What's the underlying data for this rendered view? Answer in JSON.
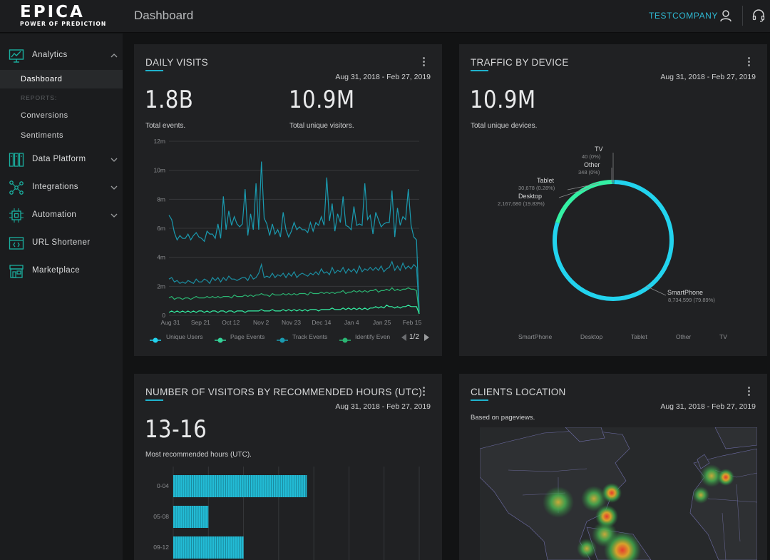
{
  "app": {
    "logo_word": "EPICA",
    "logo_tagline": "POWER OF PREDICTION",
    "page_title": "Dashboard",
    "company": "TESTCOMPANY"
  },
  "sidebar": {
    "analytics": {
      "label": "Analytics",
      "icon": "analytics-icon"
    },
    "sub_items": [
      "Dashboard",
      "Conversions",
      "Sentiments"
    ],
    "reports_label": "REPORTS:",
    "items": [
      {
        "label": "Data Platform",
        "icon": "data-platform-icon"
      },
      {
        "label": "Integrations",
        "icon": "integrations-icon"
      },
      {
        "label": "Automation",
        "icon": "automation-icon"
      },
      {
        "label": "URL Shortener",
        "icon": "url-shortener-icon"
      },
      {
        "label": "Marketplace",
        "icon": "marketplace-icon"
      }
    ]
  },
  "colors": {
    "accent": "#1fb2cc",
    "cyan": "#22d3ee",
    "green": "#34d399",
    "teal": "#1a9bb0",
    "emerald": "#2bb673",
    "dark_teal": "#0e7b8c"
  },
  "daily_visits": {
    "title": "DAILY VISITS",
    "date_range": "Aug 31, 2018 - Feb 27, 2019",
    "total_events": "1.8B",
    "total_events_label": "Total events.",
    "unique_visitors": "10.9M",
    "unique_visitors_label": "Total unique visitors.",
    "legend": [
      "Unique Users",
      "Page Events",
      "Track Events",
      "Identify Even"
    ],
    "pager": "1/2"
  },
  "traffic_by_device": {
    "title": "TRAFFIC BY DEVICE",
    "date_range": "Aug 31, 2018 - Feb 27, 2019",
    "total": "10.9M",
    "total_label": "Total unique devices.",
    "labels": {
      "tv": "TV",
      "tv_sub": "40 (0%)",
      "other": "Other",
      "other_sub": "348 (0%)",
      "tablet": "Tablet",
      "tablet_sub": "30,678 (0.28%)",
      "desktop": "Desktop",
      "desktop_sub": "2,167,680 (19.83%)",
      "smartphone": "SmartPhone",
      "smartphone_sub": "8,734,599 (79.89%)"
    },
    "legend": [
      "SmartPhone",
      "Desktop",
      "Tablet",
      "Other",
      "TV"
    ]
  },
  "recommended_hours": {
    "title": "NUMBER OF VISITORS BY RECOMMENDED HOURS (UTC)",
    "date_range": "Aug 31, 2018 - Feb 27, 2019",
    "value": "13-16",
    "value_label": "Most recommended hours (UTC)."
  },
  "clients_location": {
    "title": "CLIENTS LOCATION",
    "date_range": "Aug 31, 2018 - Feb 27, 2019",
    "subtitle": "Based on pageviews."
  },
  "chart_data": [
    {
      "type": "line",
      "title": "DAILY VISITS",
      "x_ticks": [
        "Aug 31",
        "Sep 21",
        "Oct 12",
        "Nov 2",
        "Nov 23",
        "Dec 14",
        "Jan 4",
        "Jan 25",
        "Feb 15"
      ],
      "y_ticks": [
        "0",
        "2m",
        "4m",
        "6m",
        "8m",
        "10m",
        "12m"
      ],
      "ylim": [
        0,
        12
      ],
      "series": [
        {
          "name": "Track Events",
          "values": [
            6.9,
            6.6,
            5.7,
            5.2,
            5.5,
            5.3,
            5.3,
            5.6,
            5.2,
            5.5,
            5.7,
            5.4,
            5.3,
            5.1,
            5.8,
            5.6,
            5.6,
            5.3,
            6.3,
            5.3,
            8.2,
            5.9,
            7.2,
            6.2,
            6.8,
            6.3,
            6.1,
            6.3,
            8.7,
            5.5,
            7.0,
            5.9,
            9.1,
            5.9,
            10.6,
            6.7,
            6.3,
            5.5,
            6.3,
            5.6,
            5.9,
            5.4,
            7.1,
            5.9,
            5.4,
            5.8,
            6.4,
            5.9,
            6.1,
            5.9,
            5.9,
            5.7,
            6.4,
            5.8,
            6.4,
            6.2,
            6.8,
            6.2,
            9.5,
            6.5,
            7.7,
            5.8,
            7.0,
            6.4,
            8.2,
            6.2,
            6.1,
            5.9,
            7.5,
            6.2,
            6.3,
            6.2,
            9.1,
            6.6,
            6.9,
            5.6,
            7.1,
            6.6,
            6.1,
            6.3,
            6.4,
            6.4,
            8.6,
            5.4,
            7.4,
            6.2,
            6.8,
            6.6,
            8.7,
            6.2,
            5.4,
            5.2,
            0.3
          ]
        },
        {
          "name": "Unique Users",
          "values": [
            2.5,
            2.6,
            2.3,
            2.4,
            2.2,
            2.3,
            2.2,
            2.4,
            2.3,
            2.2,
            2.5,
            2.3,
            2.3,
            2.5,
            2.4,
            2.2,
            2.6,
            2.4,
            2.6,
            2.3,
            2.6,
            2.4,
            2.7,
            2.5,
            2.5,
            2.4,
            2.5,
            2.6,
            2.6,
            2.4,
            2.8,
            2.5,
            2.6,
            2.9,
            3.5,
            2.6,
            2.7,
            2.6,
            2.9,
            2.6,
            2.8,
            2.7,
            2.9,
            2.6,
            2.9,
            2.7,
            3.0,
            2.6,
            2.8,
            2.9,
            2.8,
            2.7,
            2.9,
            2.8,
            3.0,
            2.8,
            3.2,
            2.9,
            3.0,
            2.8,
            3.3,
            2.9,
            3.1,
            3.0,
            3.3,
            2.9,
            3.2,
            3.0,
            3.2,
            2.9,
            3.4,
            3.0,
            3.2,
            3.1,
            3.3,
            3.1,
            3.3,
            3.1,
            3.4,
            3.0,
            3.2,
            3.3,
            3.7,
            3.1,
            3.4,
            3.1,
            3.6,
            3.2,
            3.4,
            3.2,
            3.5,
            3.3,
            0.2
          ]
        },
        {
          "name": "Identify Events",
          "values": [
            1.2,
            1.3,
            1.1,
            1.2,
            1.2,
            1.1,
            1.2,
            1.2,
            1.1,
            1.2,
            1.3,
            1.2,
            1.2,
            1.2,
            1.3,
            1.2,
            1.3,
            1.2,
            1.3,
            1.2,
            1.3,
            1.3,
            1.3,
            1.2,
            1.4,
            1.3,
            1.3,
            1.3,
            1.4,
            1.3,
            1.4,
            1.3,
            1.4,
            1.4,
            1.5,
            1.4,
            1.4,
            1.3,
            1.5,
            1.4,
            1.4,
            1.4,
            1.5,
            1.4,
            1.5,
            1.4,
            1.5,
            1.4,
            1.5,
            1.5,
            1.5,
            1.4,
            1.6,
            1.5,
            1.5,
            1.5,
            1.6,
            1.5,
            1.6,
            1.5,
            1.6,
            1.5,
            1.6,
            1.6,
            1.7,
            1.5,
            1.6,
            1.6,
            1.7,
            1.6,
            1.7,
            1.6,
            1.7,
            1.6,
            1.7,
            1.7,
            1.8,
            1.6,
            1.7,
            1.7,
            1.8,
            1.7,
            1.9,
            1.7,
            1.8,
            1.7,
            1.8,
            1.8,
            1.9,
            1.8,
            1.8,
            1.7,
            0.1
          ]
        },
        {
          "name": "Page Events",
          "values": [
            0.2,
            0.3,
            0.2,
            0.3,
            0.2,
            0.3,
            0.2,
            0.3,
            0.2,
            0.3,
            0.2,
            0.3,
            0.3,
            0.2,
            0.3,
            0.2,
            0.3,
            0.3,
            0.2,
            0.3,
            0.3,
            0.2,
            0.3,
            0.3,
            0.2,
            0.3,
            0.3,
            0.3,
            0.2,
            0.3,
            0.3,
            0.3,
            0.3,
            0.3,
            0.4,
            0.3,
            0.3,
            0.3,
            0.4,
            0.3,
            0.3,
            0.3,
            0.4,
            0.3,
            0.4,
            0.3,
            0.4,
            0.3,
            0.4,
            0.3,
            0.4,
            0.3,
            0.4,
            0.4,
            0.4,
            0.3,
            0.4,
            0.4,
            0.4,
            0.4,
            0.5,
            0.4,
            0.4,
            0.4,
            0.5,
            0.4,
            0.5,
            0.4,
            0.5,
            0.4,
            0.5,
            0.4,
            0.5,
            0.4,
            0.5,
            0.5,
            0.6,
            0.5,
            0.6,
            0.5,
            0.7,
            0.6,
            0.6,
            0.5,
            0.6,
            0.5,
            0.6,
            0.6,
            0.7,
            0.6,
            0.6,
            0.6,
            0.1
          ]
        }
      ]
    },
    {
      "type": "pie",
      "title": "TRAFFIC BY DEVICE",
      "categories": [
        "SmartPhone",
        "Desktop",
        "Tablet",
        "Other",
        "TV"
      ],
      "values": [
        8734599,
        2167680,
        30678,
        348,
        40
      ],
      "percent": [
        79.89,
        19.83,
        0.28,
        0,
        0
      ]
    },
    {
      "type": "bar",
      "title": "NUMBER OF VISITORS BY RECOMMENDED HOURS (UTC)",
      "orientation": "horizontal",
      "categories": [
        "0-04",
        "05-08",
        "09-12"
      ],
      "values": [
        19,
        5,
        10
      ],
      "xlim": [
        0,
        35
      ]
    }
  ]
}
